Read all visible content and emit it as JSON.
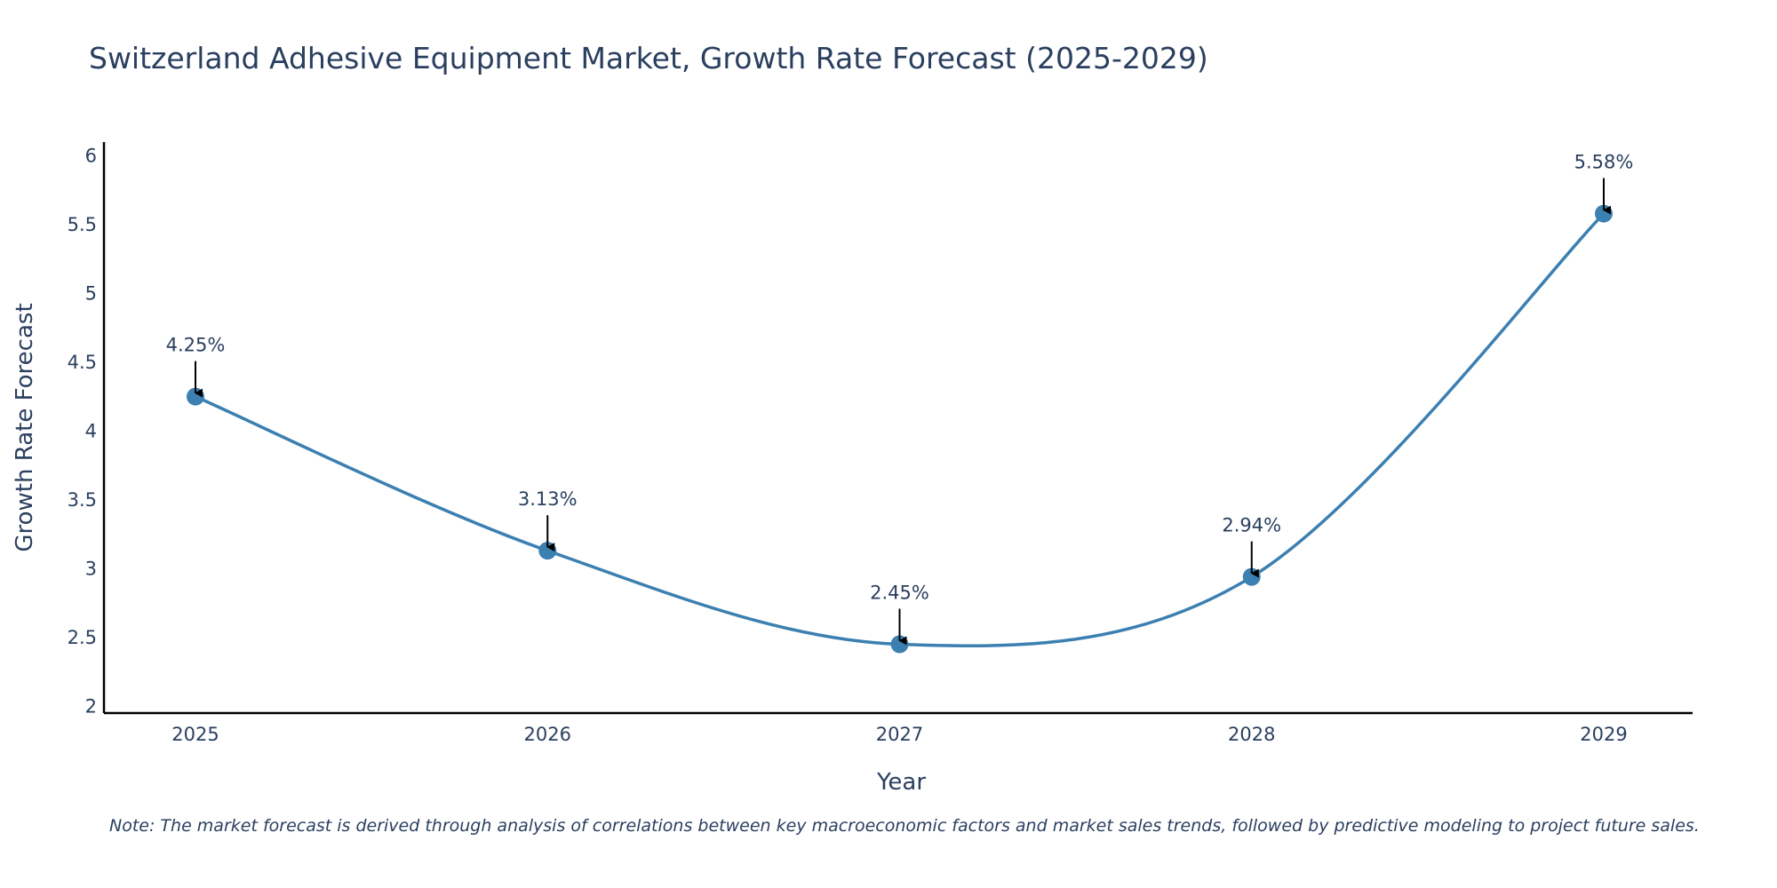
{
  "chart_data": {
    "type": "line",
    "title": "Switzerland Adhesive Equipment Market, Growth Rate Forecast (2025-2029)",
    "xlabel": "Year",
    "ylabel": "Growth Rate Forecast",
    "categories": [
      "2025",
      "2026",
      "2027",
      "2028",
      "2029"
    ],
    "series": [
      {
        "name": "Growth Rate Forecast",
        "values": [
          4.25,
          3.13,
          2.45,
          2.94,
          5.58
        ]
      }
    ],
    "data_labels": [
      "4.25%",
      "3.13%",
      "2.45%",
      "2.94%",
      "5.58%"
    ],
    "ylim": [
      1.95,
      6.1
    ],
    "yticks": [
      2,
      2.5,
      3,
      3.5,
      4,
      4.5,
      5,
      5.5,
      6
    ],
    "ytick_labels": [
      "2",
      "2.5",
      "3",
      "3.5",
      "4",
      "4.5",
      "5",
      "5.5",
      "6"
    ],
    "line_color": "#3c7fb1",
    "marker_color": "#3c7fb1",
    "axis_color": "#000000",
    "text_color": "#2a3f5f",
    "grid": false,
    "line_shape": "spline"
  },
  "note": "Note: The market forecast is derived through analysis of correlations between key macroeconomic factors and market sales trends, followed by predictive modeling to project future sales."
}
